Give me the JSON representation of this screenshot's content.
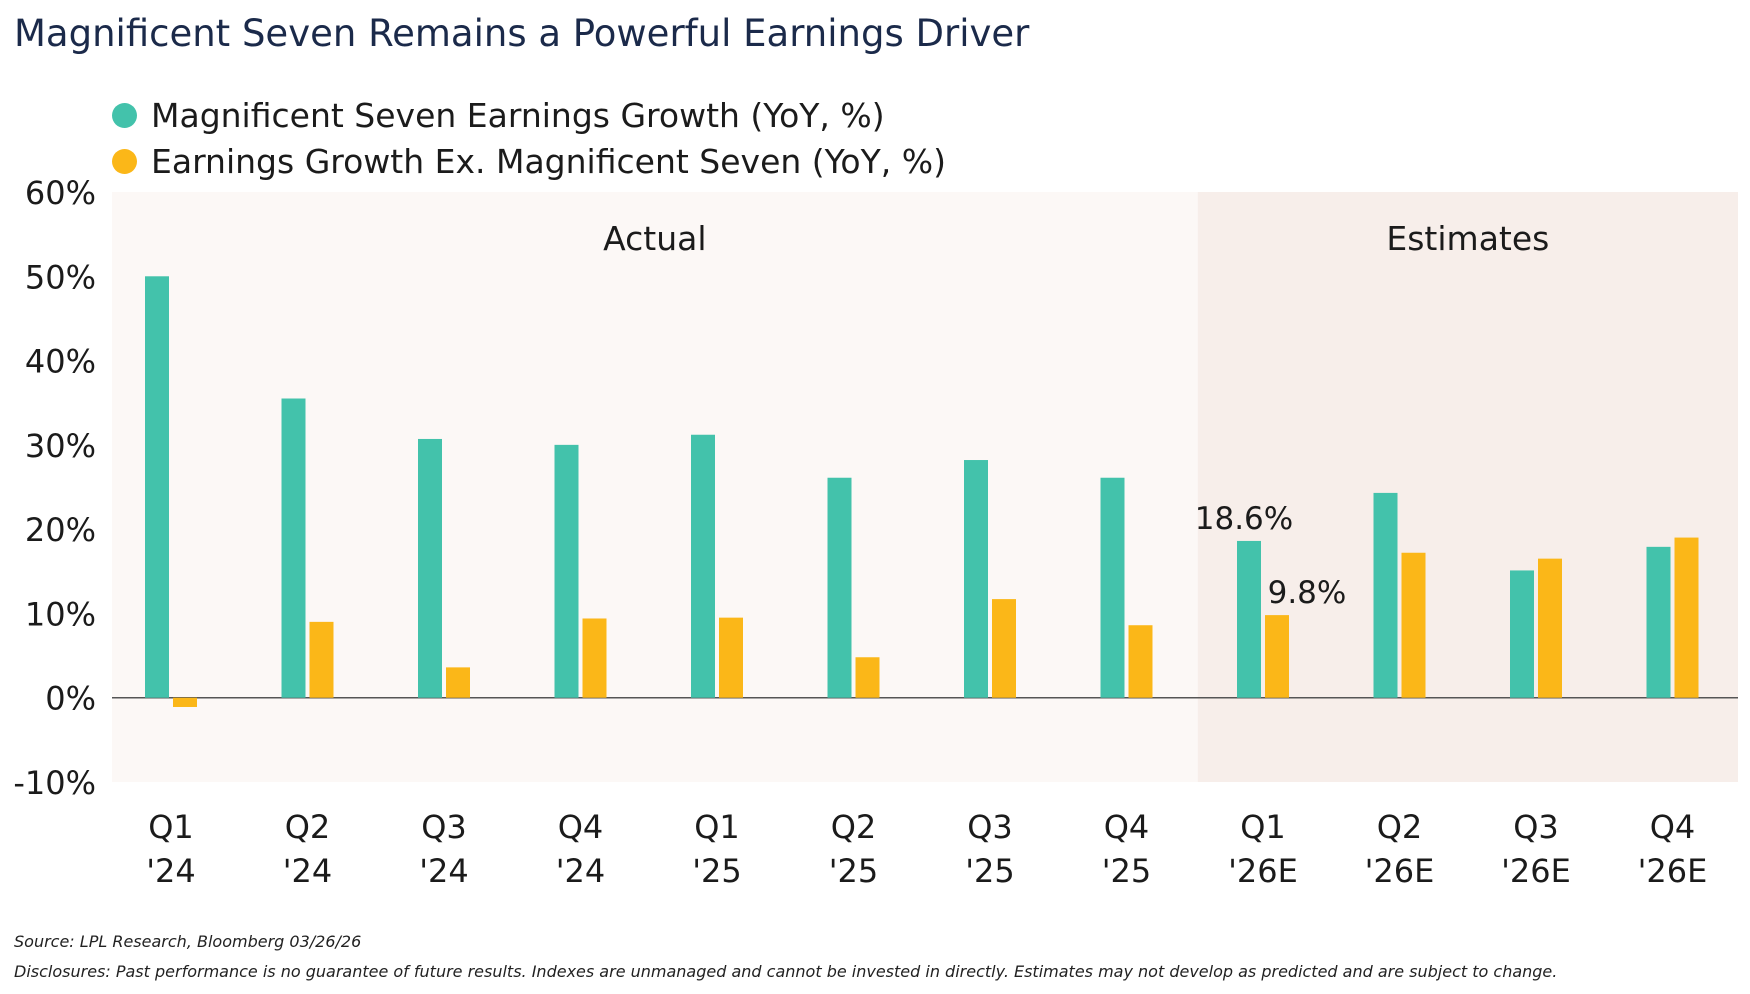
{
  "title": "Magnificent Seven Remains a Powerful Earnings Driver",
  "colors": {
    "mag7": "#43C2AB",
    "exmag7": "#FBB718",
    "actual_bg": "#FCF8F6",
    "estimates_bg": "#F7EEEA",
    "axis": "#555555"
  },
  "chart_data": {
    "type": "bar",
    "title": "",
    "xlabel": "",
    "ylabel": "",
    "ylim": [
      -10,
      60
    ],
    "yticks": [
      60,
      50,
      40,
      30,
      20,
      10,
      0,
      -10
    ],
    "ytick_labels": [
      "60%",
      "50%",
      "40%",
      "30%",
      "20%",
      "10%",
      "0%",
      "-10%"
    ],
    "categories": [
      [
        "Q1",
        "'24"
      ],
      [
        "Q2",
        "'24"
      ],
      [
        "Q3",
        "'24"
      ],
      [
        "Q4",
        "'24"
      ],
      [
        "Q1",
        "'25"
      ],
      [
        "Q2",
        "'25"
      ],
      [
        "Q3",
        "'25"
      ],
      [
        "Q4",
        "'25"
      ],
      [
        "Q1",
        "'26E"
      ],
      [
        "Q2",
        "'26E"
      ],
      [
        "Q3",
        "'26E"
      ],
      [
        "Q4",
        "'26E"
      ]
    ],
    "series": [
      {
        "name": "Magnificent Seven Earnings Growth (YoY, %)",
        "color": "#43C2AB",
        "values": [
          50.0,
          35.5,
          30.7,
          30.0,
          31.2,
          26.1,
          28.2,
          26.1,
          18.6,
          24.3,
          15.1,
          17.9
        ]
      },
      {
        "name": "Earnings Growth Ex. Magnificent Seven (YoY, %)",
        "color": "#FBB718",
        "values": [
          -1.1,
          9.0,
          3.6,
          9.4,
          9.5,
          4.8,
          11.7,
          8.6,
          9.8,
          17.2,
          16.5,
          19.0
        ]
      }
    ],
    "regions": [
      {
        "label": "Actual",
        "from_index": 0,
        "to_index": 7
      },
      {
        "label": "Estimates",
        "from_index": 8,
        "to_index": 11
      }
    ],
    "annotations": [
      {
        "text": "18.6%",
        "series": 0,
        "index": 8
      },
      {
        "text": "9.8%",
        "series": 1,
        "index": 8
      }
    ],
    "grid": false,
    "legend_position": "top-left"
  },
  "footer": {
    "source": "Source: LPL Research, Bloomberg 03/26/26",
    "disclosures": "Disclosures: Past performance is no guarantee of future results. Indexes are unmanaged and cannot be invested in directly. Estimates may not develop as predicted and are subject to change."
  }
}
